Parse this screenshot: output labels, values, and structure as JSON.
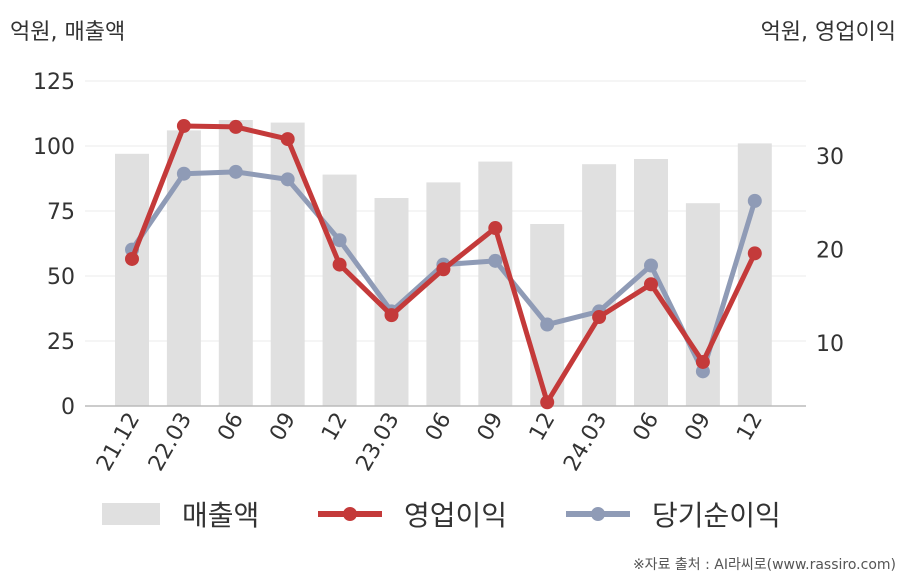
{
  "units": {
    "left": "억원, 매출액",
    "right": "억원, 영업이익"
  },
  "source": "※자료 출처 : AI라씨로(www.rassiro.com)",
  "colors": {
    "bar": "#e0e0e0",
    "operating_profit": "#c43a3a",
    "net_profit": "#8f9bb6"
  },
  "chart_data": {
    "type": "bar",
    "categories": [
      "21.12",
      "22.03",
      "06",
      "09",
      "12",
      "23.03",
      "06",
      "09",
      "12",
      "24.03",
      "06",
      "09",
      "12"
    ],
    "y_left": {
      "ticks": [
        0,
        25,
        50,
        75,
        100,
        125
      ],
      "range": [
        0,
        125
      ]
    },
    "y_right": {
      "ticks": [
        10,
        20,
        30
      ],
      "range": [
        3.3,
        38
      ]
    },
    "series": [
      {
        "name": "매출액",
        "type": "bar",
        "axis": "left",
        "values": [
          97,
          106,
          110,
          109,
          89,
          80,
          86,
          94,
          70,
          93,
          95,
          78,
          101
        ]
      },
      {
        "name": "영업이익",
        "type": "line",
        "axis": "right",
        "values": [
          19,
          33.2,
          33.1,
          31.8,
          18.4,
          13,
          17.9,
          22.3,
          3.7,
          12.8,
          16.3,
          8,
          19.6
        ]
      },
      {
        "name": "당기순이익",
        "type": "line",
        "axis": "right",
        "values": [
          20,
          28.1,
          28.3,
          27.5,
          21,
          13.4,
          18.4,
          18.8,
          12,
          13.4,
          18.3,
          7,
          25.2
        ]
      }
    ],
    "legend_position": "bottom",
    "grid": true
  }
}
